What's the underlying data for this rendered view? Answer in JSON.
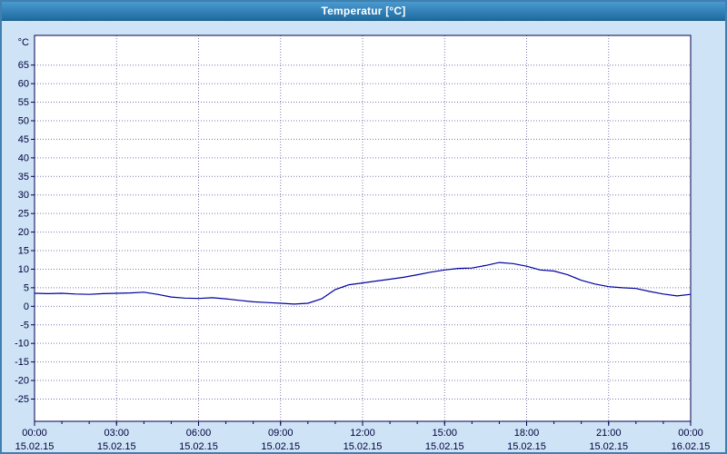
{
  "window": {
    "title": "Temperatur [°C]"
  },
  "chart_data": {
    "type": "line",
    "title": "Temperatur [°C]",
    "xlabel": "",
    "ylabel": "°C",
    "grid": true,
    "legend": false,
    "x_axis_range": [
      0,
      24
    ],
    "y_axis_range": [
      -31,
      73
    ],
    "ylim": [
      -25,
      65
    ],
    "y_ticks": [
      65,
      60,
      55,
      50,
      45,
      40,
      35,
      30,
      25,
      20,
      15,
      10,
      5,
      0,
      -5,
      -10,
      -15,
      -20,
      -25
    ],
    "x_ticks": [
      {
        "hour": 0,
        "time": "00:00",
        "date": "15.02.15"
      },
      {
        "hour": 3,
        "time": "03:00",
        "date": "15.02.15"
      },
      {
        "hour": 6,
        "time": "06:00",
        "date": "15.02.15"
      },
      {
        "hour": 9,
        "time": "09:00",
        "date": "15.02.15"
      },
      {
        "hour": 12,
        "time": "12:00",
        "date": "15.02.15"
      },
      {
        "hour": 15,
        "time": "15:00",
        "date": "15.02.15"
      },
      {
        "hour": 18,
        "time": "18:00",
        "date": "15.02.15"
      },
      {
        "hour": 21,
        "time": "21:00",
        "date": "15.02.15"
      },
      {
        "hour": 24,
        "time": "00:00",
        "date": "16.02.15"
      }
    ],
    "x_hours": [
      0,
      0.5,
      1,
      1.5,
      2,
      2.5,
      3,
      3.5,
      4,
      4.5,
      5,
      5.5,
      6,
      6.5,
      7,
      7.5,
      8,
      8.5,
      9,
      9.5,
      10,
      10.5,
      11,
      11.5,
      12,
      12.5,
      13,
      13.5,
      14,
      14.5,
      15,
      15.5,
      16,
      16.5,
      17,
      17.5,
      18,
      18.5,
      19,
      19.5,
      20,
      20.5,
      21,
      21.5,
      22,
      22.5,
      23,
      23.5,
      24
    ],
    "series": [
      {
        "name": "Temperatur",
        "color": "#0000a0",
        "values": [
          3.5,
          3.4,
          3.5,
          3.3,
          3.2,
          3.4,
          3.5,
          3.6,
          3.8,
          3.2,
          2.5,
          2.2,
          2.1,
          2.3,
          2.0,
          1.6,
          1.2,
          1.0,
          0.8,
          0.6,
          0.8,
          2.0,
          4.5,
          5.8,
          6.3,
          6.8,
          7.3,
          7.8,
          8.5,
          9.2,
          9.8,
          10.2,
          10.3,
          11.0,
          11.8,
          11.5,
          10.8,
          9.8,
          9.5,
          8.5,
          7.0,
          6.0,
          5.3,
          5.0,
          4.8,
          4.0,
          3.3,
          2.8,
          3.2
        ]
      }
    ],
    "colors": {
      "line": "#0000a0",
      "grid": "#7a7aae",
      "axis": "#000050",
      "tick_text": "#00003c",
      "plot_bg": "#ffffff",
      "window_bg": "#cfe3f6"
    }
  }
}
